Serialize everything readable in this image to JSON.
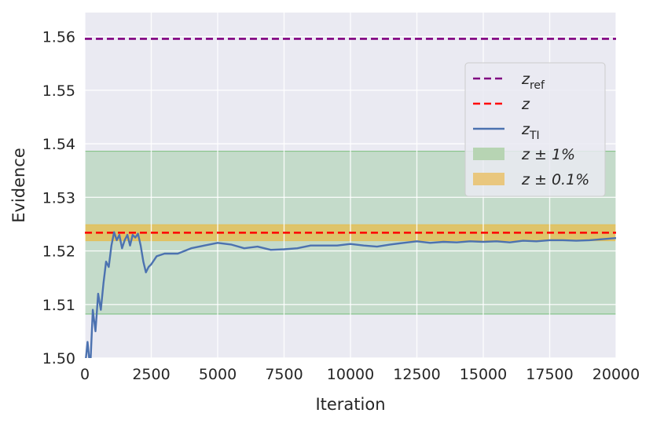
{
  "chart_data": {
    "type": "line",
    "xlabel": "Iteration",
    "ylabel": "Evidence",
    "xlim": [
      0,
      20000
    ],
    "ylim": [
      1.5,
      1.5645
    ],
    "x_ticks": [
      "0",
      "2500",
      "5000",
      "7500",
      "10000",
      "12500",
      "15000",
      "17500",
      "20000"
    ],
    "y_ticks": [
      "1.50",
      "1.51",
      "1.52",
      "1.53",
      "1.54",
      "1.55",
      "1.56"
    ],
    "grid": true,
    "legend_position": "center-right",
    "reference_lines": [
      {
        "name": "z_ref",
        "value": 1.5596,
        "color": "#800080",
        "style": "dashed"
      },
      {
        "name": "z",
        "value": 1.5234,
        "color": "#ff0000",
        "style": "dashed"
      }
    ],
    "bands": [
      {
        "name": "z ± 1%",
        "low": 1.5082,
        "high": 1.5386,
        "color": "#2ca02c",
        "opacity": 0.2
      },
      {
        "name": "z ± 0.1%",
        "low": 1.5219,
        "high": 1.5249,
        "color": "#f0b429",
        "opacity": 0.6
      }
    ],
    "series": [
      {
        "name": "z_TI",
        "color": "#4c72b0",
        "x": [
          0,
          100,
          200,
          300,
          400,
          500,
          600,
          700,
          800,
          900,
          1000,
          1100,
          1200,
          1300,
          1400,
          1500,
          1600,
          1700,
          1800,
          1900,
          2000,
          2100,
          2200,
          2300,
          2400,
          2500,
          2700,
          3000,
          3500,
          4000,
          4500,
          5000,
          5500,
          6000,
          6500,
          7000,
          7500,
          8000,
          8500,
          9000,
          9500,
          10000,
          10500,
          11000,
          11500,
          12000,
          12500,
          13000,
          13500,
          14000,
          14500,
          15000,
          15500,
          16000,
          16500,
          17000,
          17500,
          18000,
          18500,
          19000,
          19500,
          20000
        ],
        "y": [
          1.498,
          1.503,
          1.498,
          1.509,
          1.505,
          1.512,
          1.509,
          1.514,
          1.518,
          1.517,
          1.521,
          1.5235,
          1.522,
          1.523,
          1.5205,
          1.522,
          1.523,
          1.521,
          1.523,
          1.5225,
          1.5232,
          1.521,
          1.518,
          1.516,
          1.517,
          1.5175,
          1.519,
          1.5195,
          1.5195,
          1.5205,
          1.521,
          1.5215,
          1.5212,
          1.5205,
          1.5208,
          1.5202,
          1.5203,
          1.5205,
          1.521,
          1.521,
          1.521,
          1.5213,
          1.521,
          1.5208,
          1.5212,
          1.5215,
          1.5218,
          1.5215,
          1.5217,
          1.5216,
          1.5218,
          1.5217,
          1.5218,
          1.5216,
          1.5219,
          1.5218,
          1.522,
          1.522,
          1.5219,
          1.522,
          1.5222,
          1.5224
        ]
      }
    ],
    "legend": [
      {
        "kind": "line-dashed",
        "color": "#800080",
        "label_main": "z",
        "label_sub": "ref"
      },
      {
        "kind": "line-dashed",
        "color": "#ff0000",
        "label_main": "z",
        "label_sub": ""
      },
      {
        "kind": "line-solid",
        "color": "#4c72b0",
        "label_main": "z",
        "label_sub": "TI"
      },
      {
        "kind": "patch",
        "color": "#b7d4b3",
        "label_main": "z ± 1%",
        "label_sub": ""
      },
      {
        "kind": "patch",
        "color": "#e9c77e",
        "label_main": "z ± 0.1%",
        "label_sub": ""
      }
    ]
  }
}
